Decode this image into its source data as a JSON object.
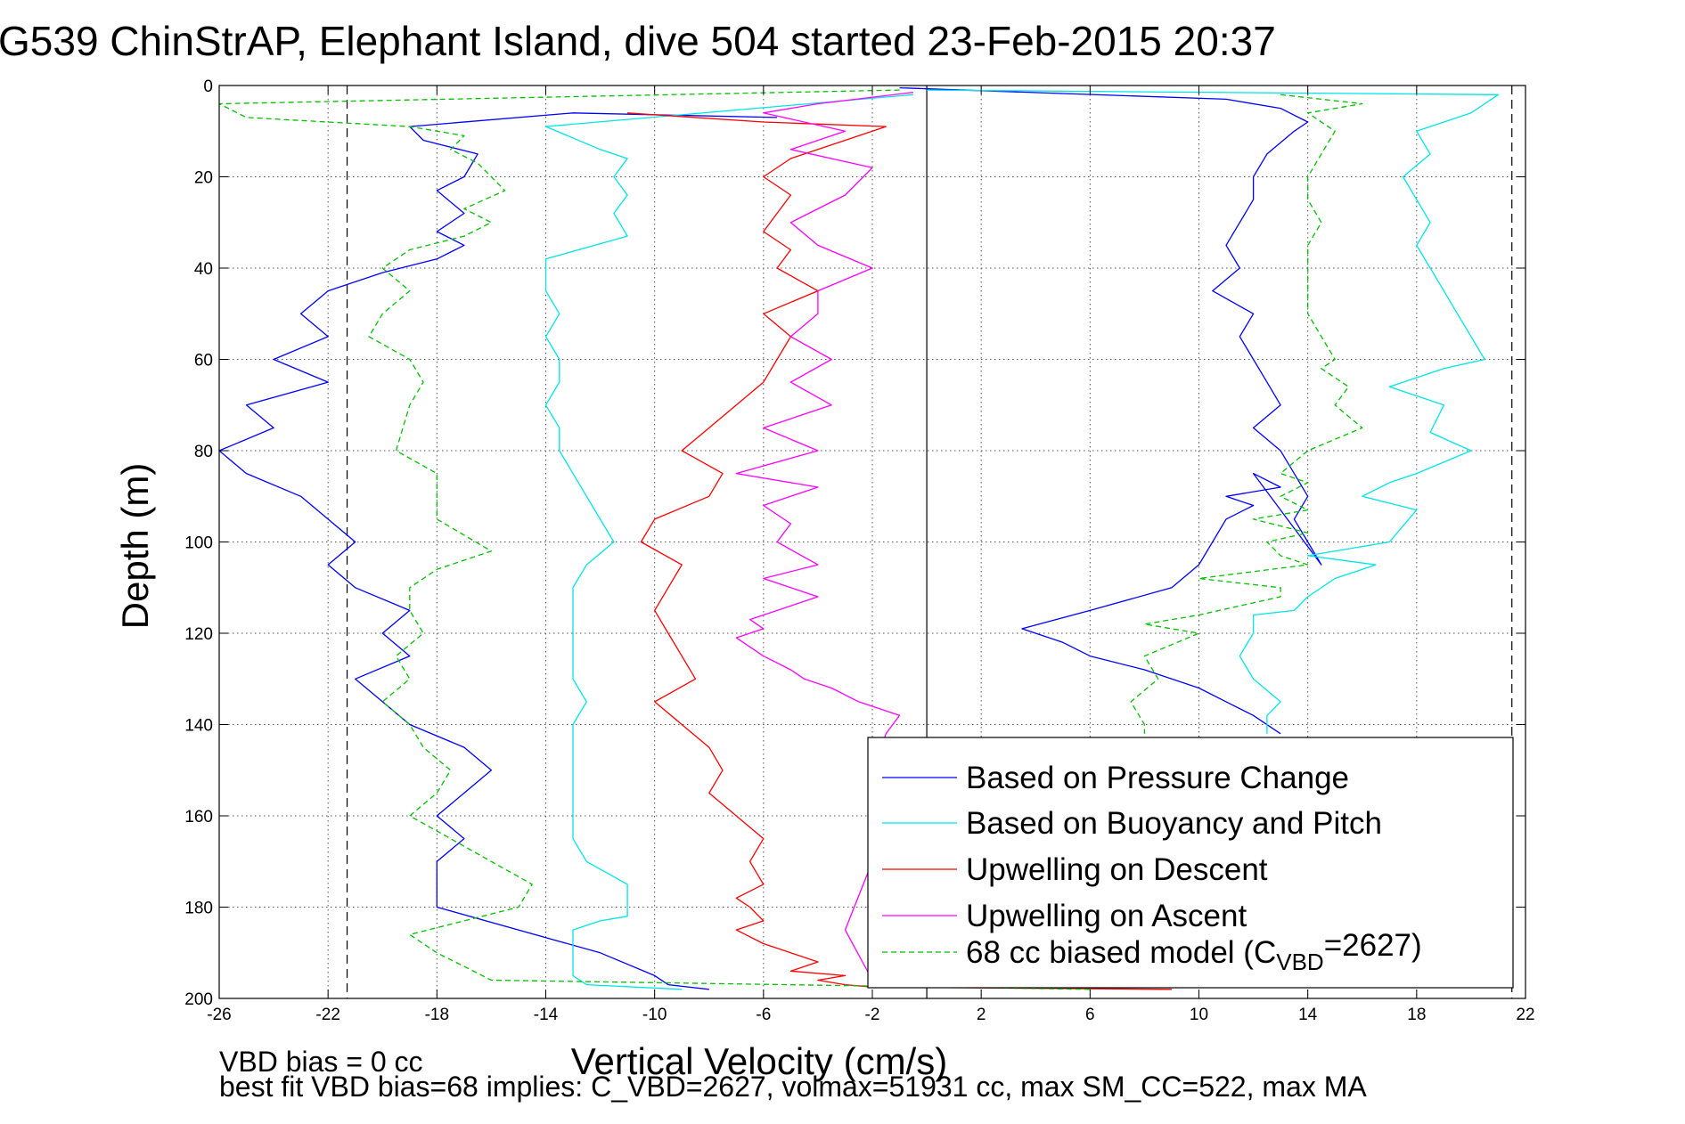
{
  "chart_data": {
    "type": "line",
    "title": "G539 ChinStrAP, Elephant Island, dive 504 started 23-Feb-2015 20:37",
    "xlabel": "Vertical Velocity (cm/s)",
    "ylabel": "Depth (m)",
    "xlim": [
      -26,
      22
    ],
    "ylim": [
      0,
      200
    ],
    "y_reversed": true,
    "grid": true,
    "x_ticks": [
      -26,
      -22,
      -18,
      -14,
      -10,
      -6,
      -2,
      2,
      6,
      10,
      14,
      18,
      22
    ],
    "y_ticks": [
      0,
      20,
      40,
      60,
      80,
      100,
      120,
      140,
      160,
      180,
      200
    ],
    "legend_position": "bottom-right",
    "reference_lines_x": [
      -21.3,
      0,
      21.5
    ],
    "series": [
      {
        "name": "Based on Pressure Change",
        "color": "#0000ff",
        "style": "solid",
        "x": [
          -5.5,
          -13,
          -19,
          -18.5,
          -16.5,
          -17,
          -18,
          -17,
          -18,
          -17,
          -18,
          -20,
          -22,
          -23,
          -22,
          -24,
          -22,
          -25,
          -24,
          -26,
          -25,
          -23,
          -22,
          -21,
          -22,
          -21,
          -19,
          -20,
          -19,
          -21,
          -20,
          -19,
          -17,
          -16,
          -17,
          -18,
          -17,
          -18,
          -18,
          -12,
          -10,
          -9.5,
          -8
        ],
        "y": [
          7,
          6,
          9,
          12,
          15,
          20,
          23,
          28,
          32,
          35,
          38,
          41,
          45,
          50,
          55,
          60,
          65,
          70,
          75,
          80,
          85,
          90,
          95,
          100,
          105,
          110,
          115,
          120,
          125,
          130,
          135,
          140,
          145,
          150,
          155,
          160,
          165,
          170,
          180,
          190,
          195,
          197,
          198
        ],
        "x_ascent": [
          -1,
          11,
          13,
          14,
          13.5,
          12.5,
          12,
          12,
          11.5,
          11,
          11.5,
          10.5,
          12,
          11.5,
          12,
          12.5,
          13,
          12,
          13,
          13.5,
          14,
          13.5,
          14,
          14.5,
          12,
          13,
          11,
          12,
          11,
          10.5,
          10,
          9,
          6,
          3.5,
          5,
          6,
          8,
          10,
          11,
          12,
          13
        ],
        "y_ascent": [
          0.5,
          3,
          5,
          8,
          10,
          15,
          20,
          25,
          30,
          35,
          40,
          45,
          50,
          55,
          60,
          65,
          70,
          75,
          80,
          85,
          90,
          95,
          100,
          105,
          85,
          88,
          90,
          92,
          95,
          100,
          105,
          110,
          115,
          119,
          122,
          125,
          128,
          132,
          135,
          138,
          142
        ]
      },
      {
        "name": "Based on Buoyancy and Pitch",
        "color": "#00e5e5",
        "style": "solid",
        "x": [
          -0.5,
          -14,
          -12,
          -11,
          -11.5,
          -11,
          -11.5,
          -11,
          -14,
          -14,
          -13.5,
          -14,
          -13.5,
          -13.5,
          -14,
          -13.5,
          -13.5,
          -13,
          -12.5,
          -11.5,
          -12.5,
          -13,
          -13,
          -13,
          -12.5,
          -13,
          -13,
          -13,
          -13,
          -13,
          -13,
          -12.5,
          -11,
          -11,
          -11,
          -12,
          -13,
          -13,
          -13,
          -13,
          -12.5,
          -9
        ],
        "y": [
          2,
          9,
          14,
          16,
          20,
          24,
          28,
          33,
          38,
          45,
          50,
          55,
          60,
          65,
          70,
          75,
          80,
          85,
          90,
          100,
          105,
          110,
          120,
          130,
          135,
          140,
          145,
          150,
          155,
          160,
          165,
          170,
          175,
          180,
          182,
          183,
          185,
          188,
          190,
          195,
          197,
          198
        ],
        "x_ascent": [
          0,
          21,
          20.5,
          20,
          18,
          18.5,
          17.5,
          18,
          18.5,
          18,
          18.5,
          19,
          19.5,
          20,
          20.5,
          19,
          17,
          19,
          18.5,
          20,
          18,
          17,
          16,
          18,
          17,
          14,
          16.5,
          16,
          15,
          14,
          13.5,
          12,
          12,
          11.5,
          12,
          13,
          12.5,
          12.5
        ],
        "y_ascent": [
          1,
          2,
          4,
          6,
          10,
          15,
          20,
          25,
          30,
          35,
          40,
          45,
          50,
          55,
          60,
          62,
          66,
          70,
          76,
          80,
          85,
          87,
          90,
          93,
          100,
          103,
          105,
          106,
          108,
          112,
          115,
          116,
          120,
          125,
          130,
          135,
          138,
          142
        ]
      },
      {
        "name": "Upwelling on Descent",
        "color": "#ff0000",
        "style": "solid",
        "x": [
          -11,
          -6,
          -1.5,
          -3,
          -5,
          -6,
          -5,
          -5.5,
          -6,
          -5,
          -5.5,
          -4,
          -6,
          -5,
          -5.5,
          -6,
          -7,
          -8,
          -9,
          -7.5,
          -8,
          -10,
          -10.5,
          -9,
          -9.5,
          -10,
          -9.5,
          -9,
          -8.5,
          -10,
          -9,
          -8,
          -7.5,
          -8,
          -7,
          -6,
          -6.5,
          -6,
          -7,
          -6.5,
          -6,
          -7,
          -6,
          -5,
          -4,
          -5,
          -3,
          -4,
          -3,
          -2,
          9
        ],
        "y": [
          6,
          8,
          9,
          12,
          16,
          20,
          24,
          28,
          32,
          36,
          40,
          45,
          50,
          55,
          60,
          65,
          70,
          75,
          80,
          85,
          90,
          95,
          100,
          105,
          110,
          115,
          120,
          125,
          130,
          135,
          140,
          145,
          150,
          155,
          160,
          165,
          170,
          175,
          178,
          180,
          183,
          185,
          188,
          190,
          192,
          194,
          195,
          196,
          197,
          197.5,
          198
        ]
      },
      {
        "name": "Upwelling on Ascent",
        "color": "#ff00ff",
        "style": "solid",
        "x": [
          -0.5,
          -4,
          -6,
          -3,
          -5,
          -2,
          -3,
          -5,
          -4,
          -2,
          -4,
          -4,
          -5,
          -3.5,
          -5,
          -3.5,
          -6,
          -4,
          -7,
          -4,
          -6,
          -5,
          -5.5,
          -4,
          -6,
          -5,
          -4,
          -5.5,
          -6.5,
          -6,
          -7,
          -6,
          -5,
          -4.5,
          -3.5,
          -2.5,
          -1,
          -1.5,
          -2,
          -1.5,
          -2,
          -3,
          -2
        ],
        "y": [
          1.5,
          4,
          6,
          10,
          14,
          18,
          24,
          30,
          35,
          40,
          45,
          50,
          55,
          60,
          65,
          70,
          75,
          80,
          85,
          88,
          92,
          96,
          100,
          105,
          108,
          110,
          112,
          115,
          117,
          119,
          121,
          125,
          128,
          130,
          132,
          135,
          138,
          142,
          150,
          160,
          170,
          185,
          196
        ]
      },
      {
        "name": "68 cc biased model (C_VBD=2627)",
        "label_main": "68 cc biased model (C",
        "label_sub": "VBD",
        "label_end": "=2627)",
        "color": "#00c000",
        "style": "dashed",
        "x": [
          -1,
          -26,
          -25,
          -19,
          -17,
          -17.5,
          -16.5,
          -16,
          -15.5,
          -17,
          -16,
          -17,
          -19,
          -20,
          -19,
          -20,
          -20.5,
          -19,
          -18.5,
          -19,
          -19.5,
          -18,
          -18,
          -16,
          -17,
          -18,
          -19,
          -19,
          -18.5,
          -19.5,
          -19,
          -20,
          -19,
          -18.5,
          -17.5,
          -18,
          -19,
          -17.5,
          -16,
          -14.5,
          -15,
          -17,
          -19,
          -18,
          -17,
          -16,
          6
        ],
        "y": [
          1,
          4,
          7,
          9,
          11,
          14,
          17,
          20,
          23,
          27,
          30,
          33,
          36,
          40,
          45,
          50,
          55,
          60,
          65,
          70,
          80,
          85,
          95,
          102,
          104,
          106,
          110,
          115,
          120,
          125,
          130,
          135,
          140,
          145,
          150,
          155,
          160,
          165,
          170,
          175,
          180,
          183,
          186,
          190,
          193,
          196,
          198
        ],
        "x_ascent": [
          13,
          16,
          14,
          15,
          14.5,
          14,
          14,
          14.5,
          14,
          14,
          14,
          14,
          14.5,
          15,
          14.5,
          15.5,
          15,
          16,
          14,
          13,
          14,
          13,
          14,
          12,
          14,
          12.5,
          13,
          14,
          10,
          13,
          13,
          10,
          8,
          10,
          8,
          8.5,
          7.5,
          8,
          8
        ],
        "y_ascent": [
          2,
          4,
          6,
          10,
          15,
          20,
          25,
          30,
          35,
          40,
          45,
          50,
          55,
          60,
          62,
          66,
          70,
          75,
          80,
          85,
          87,
          90,
          93,
          95,
          98,
          100,
          103,
          105,
          108,
          110,
          112,
          116,
          118,
          120,
          125,
          130,
          135,
          140,
          142
        ]
      }
    ],
    "annotations": [
      "VBD bias = 0 cc",
      "best fit VBD bias=68 implies: C_VBD=2627, volmax=51931 cc, max SM_CC=522, max MA"
    ]
  }
}
